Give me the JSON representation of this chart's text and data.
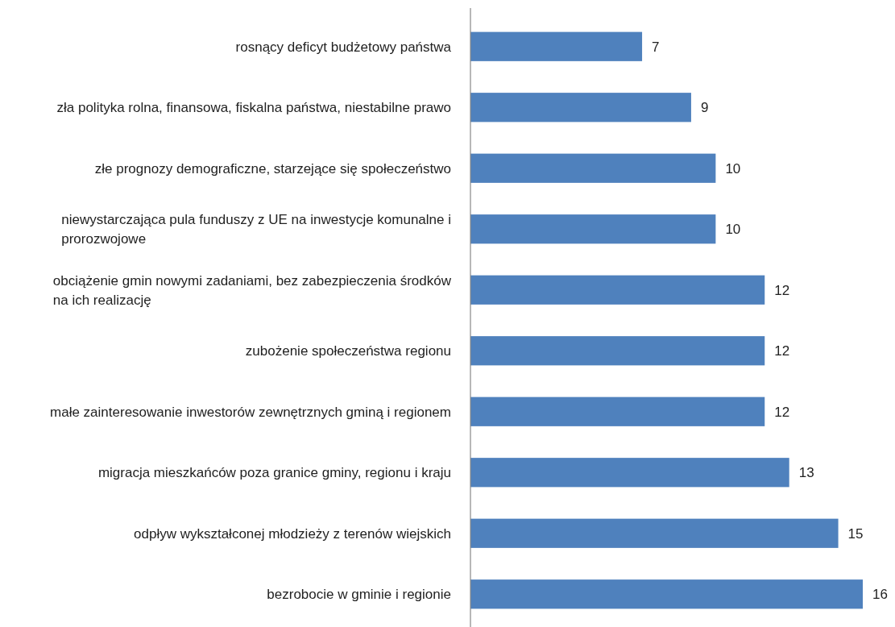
{
  "chart_data": {
    "type": "bar",
    "orientation": "horizontal",
    "data_labels": true,
    "color": "#4f81bd",
    "categories": [
      "rosnący deficyt budżetowy państwa",
      "zła polityka rolna, finansowa, fiskalna państwa, niestabilne prawo",
      "złe prognozy demograficzne, starzejące się społeczeństwo",
      "niewystarczająca pula funduszy z UE na inwestycje komunalne i prorozwojowe",
      "obciążenie gmin nowymi zadaniami, bez zabezpieczenia środków na ich realizację",
      "zubożenie społeczeństwa regionu",
      "małe zainteresowanie inwestorów zewnętrznych gminą i regionem",
      "migracja mieszkańców poza granice gminy, regionu i kraju",
      "odpływ wykształconej młodzieży z terenów wiejskich",
      "bezrobocie w gminie i regionie"
    ],
    "values": [
      7,
      9,
      10,
      10,
      12,
      12,
      12,
      13,
      15,
      16
    ]
  }
}
